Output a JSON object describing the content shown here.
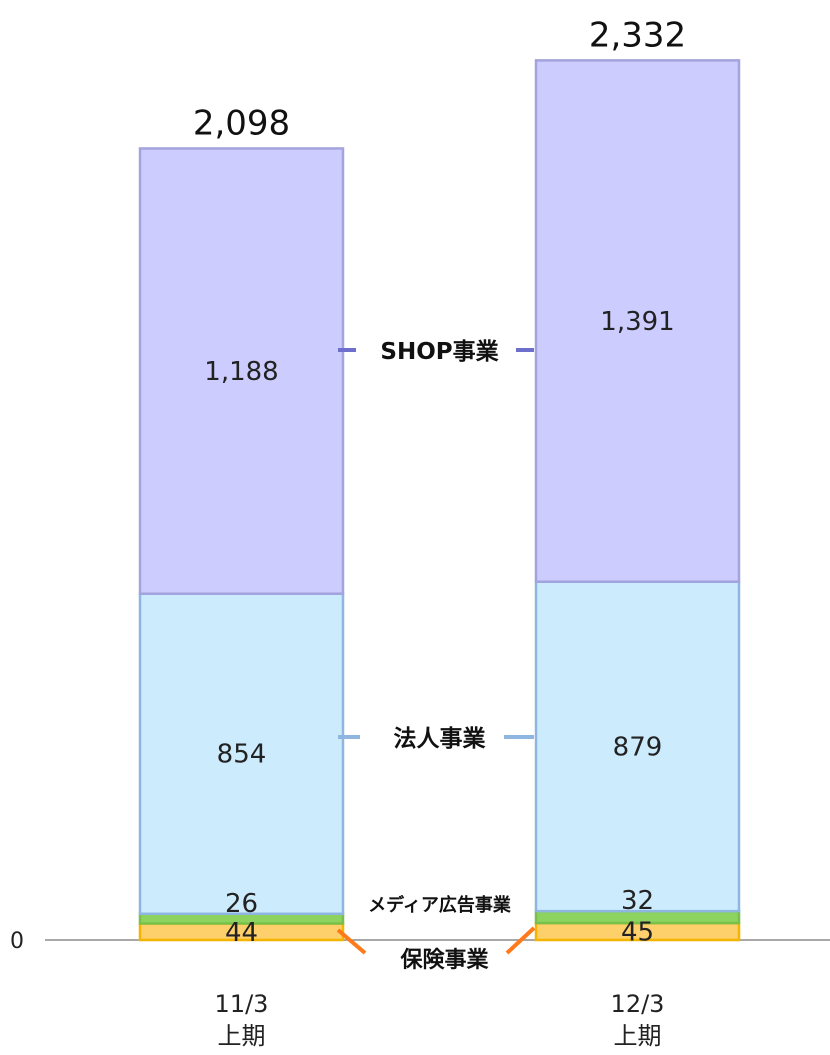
{
  "chart_data": {
    "type": "bar",
    "stacked": true,
    "categories": [
      [
        "11/3",
        "上期"
      ],
      [
        "12/3",
        "上期"
      ]
    ],
    "series": [
      {
        "name": "保険事業",
        "values": [
          44,
          45
        ],
        "color": "#FDD06B",
        "edge": "#F5B400",
        "label_color": "#FF7A1A"
      },
      {
        "name": "メディア広告事業",
        "values": [
          26,
          32
        ],
        "color": "#8DD35F",
        "edge": "#79C04A",
        "label_color": "#7DBE4E"
      },
      {
        "name": "法人事業",
        "values": [
          854,
          879
        ],
        "color": "#CCEBFD",
        "edge": "#8FB6E0",
        "label_color": "#8FB6E0"
      },
      {
        "name": "SHOP事業",
        "values": [
          1188,
          1391
        ],
        "color": "#CCCCFE",
        "edge": "#A3A3DD",
        "label_color": "#6E6ECC"
      }
    ],
    "totals": [
      "2,098",
      "2,332"
    ],
    "value_labels": [
      [
        "44",
        "45"
      ],
      [
        "26",
        "32"
      ],
      [
        "854",
        "879"
      ],
      [
        "1,188",
        "1,391"
      ]
    ],
    "y_tick": "0",
    "ylim": [
      0,
      2332
    ],
    "grid": false,
    "legend": "inline between bars"
  }
}
